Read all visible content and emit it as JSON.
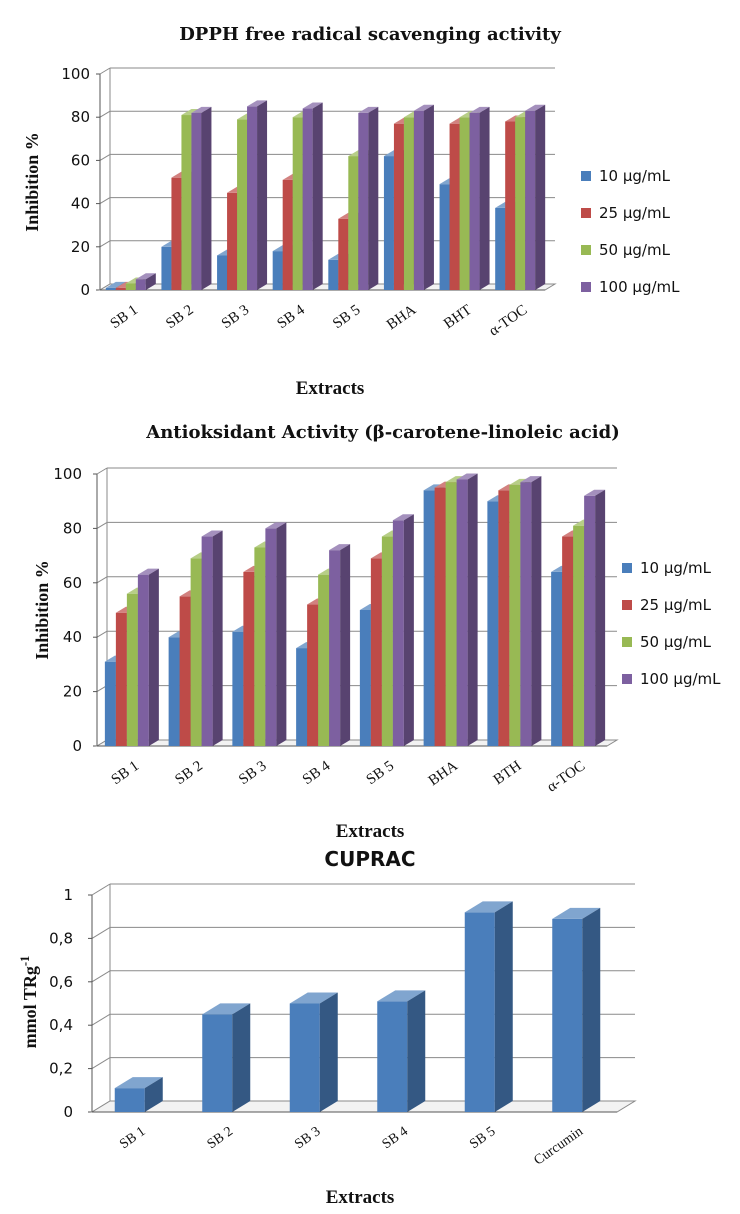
{
  "chart_data": [
    {
      "type": "bar",
      "title": "DPPH free radical scavenging activity",
      "xlabel": "Extracts",
      "ylabel": "Inhibition %",
      "ylim": [
        0,
        100
      ],
      "yticks": [
        "0",
        "20",
        "40",
        "60",
        "80",
        "100"
      ],
      "grid": true,
      "legend_position": "right",
      "categories": [
        "SB 1",
        "SB 2",
        "SB 3",
        "SB 4",
        "SB 5",
        "BHA",
        "BHT",
        "α-TOC"
      ],
      "series": [
        {
          "name": "10 µg/mL",
          "color": "#4a7ebb",
          "values": [
            1,
            20,
            16,
            18,
            14,
            62,
            49,
            38
          ]
        },
        {
          "name": "25 µg/mL",
          "color": "#be4b48",
          "values": [
            1,
            52,
            45,
            51,
            33,
            77,
            77,
            78
          ]
        },
        {
          "name": "50 µg/mL",
          "color": "#98b954",
          "values": [
            3,
            81,
            79,
            80,
            62,
            80,
            80,
            80
          ]
        },
        {
          "name": "100 µg/mL",
          "color": "#7d60a0",
          "values": [
            5,
            82,
            85,
            84,
            82,
            83,
            82,
            83
          ]
        }
      ]
    },
    {
      "type": "bar",
      "title": "Antioksidant Activity (β-carotene-linoleic acid)",
      "xlabel": "Extracts",
      "ylabel": "Inhibition %",
      "ylim": [
        0,
        100
      ],
      "yticks": [
        "0",
        "20",
        "40",
        "60",
        "80",
        "100"
      ],
      "grid": true,
      "legend_position": "right",
      "categories": [
        "SB 1",
        "SB 2",
        "SB 3",
        "SB 4",
        "SB 5",
        "BHA",
        "BTH",
        "α-TOC"
      ],
      "series": [
        {
          "name": "10 µg/mL",
          "color": "#4a7ebb",
          "values": [
            31,
            40,
            42,
            36,
            50,
            94,
            90,
            64
          ]
        },
        {
          "name": "25 µg/mL",
          "color": "#be4b48",
          "values": [
            49,
            55,
            64,
            52,
            69,
            95,
            94,
            77
          ]
        },
        {
          "name": "50 µg/mL",
          "color": "#98b954",
          "values": [
            56,
            69,
            73,
            63,
            77,
            97,
            96,
            81
          ]
        },
        {
          "name": "100 µg/mL",
          "color": "#7d60a0",
          "values": [
            63,
            77,
            80,
            72,
            83,
            98,
            97,
            92
          ]
        }
      ]
    },
    {
      "type": "bar",
      "title": "CUPRAC",
      "xlabel": "Extracts",
      "ylabel": "mmol TRg",
      "ylabel_sup": "-1",
      "ylim": [
        0,
        1
      ],
      "yticks": [
        "0",
        "0,2",
        "0,4",
        "0,6",
        "0,8",
        "1"
      ],
      "grid": true,
      "categories": [
        "SB 1",
        "SB 2",
        "SB 3",
        "SB 4",
        "SB 5",
        "Curcumin"
      ],
      "series": [
        {
          "name": "",
          "color": "#4a7ebb",
          "values": [
            0.11,
            0.45,
            0.5,
            0.51,
            0.92,
            0.89
          ]
        }
      ]
    }
  ]
}
